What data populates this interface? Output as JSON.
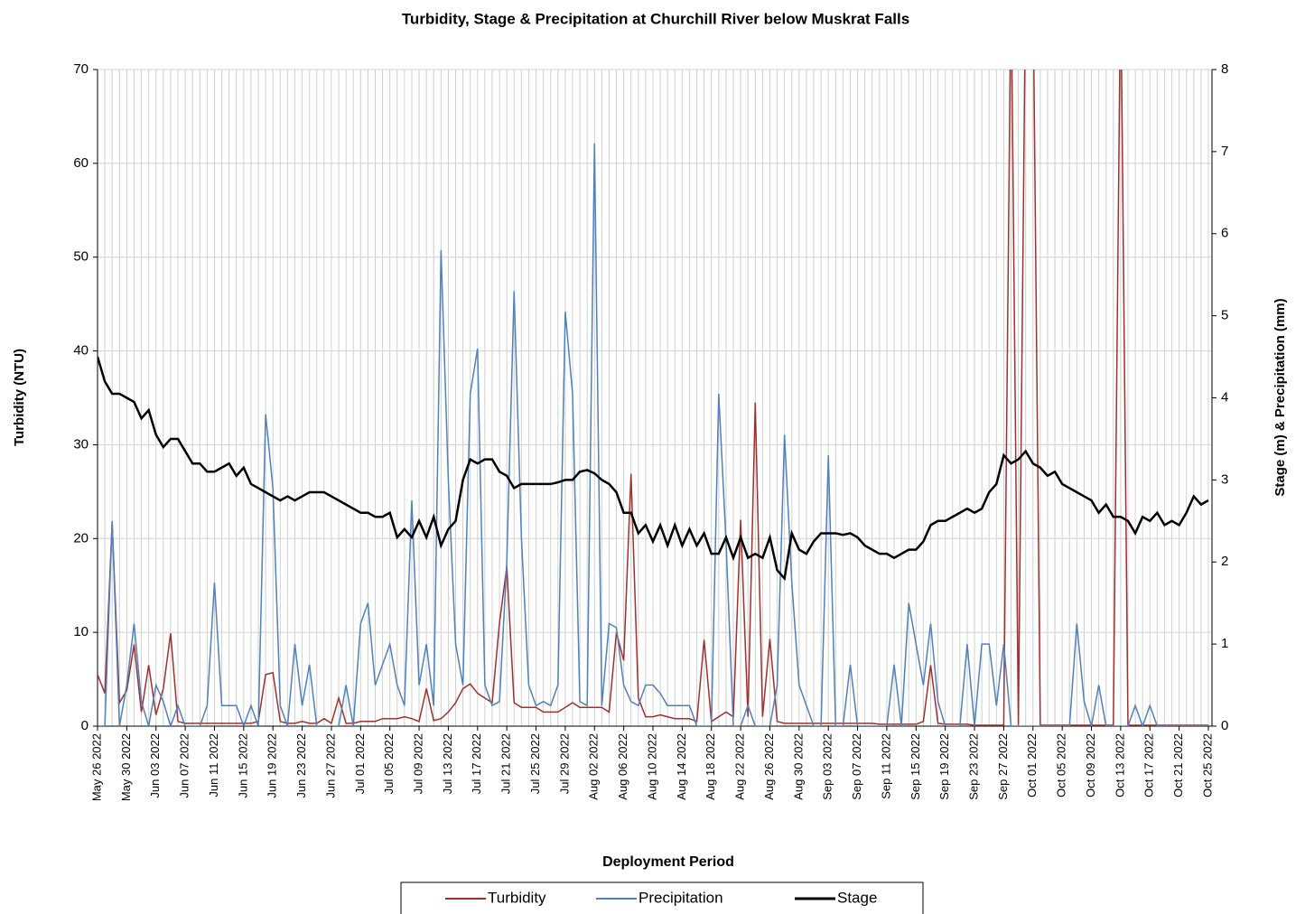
{
  "chart_data": {
    "type": "line",
    "title": "Turbidity, Stage & Precipitation at Churchill River below Muskrat Falls",
    "x_label": "Deployment Period",
    "y_label": "Turbidity (NTU)",
    "y2_label": "Stage (m) & Precipitation (mm)",
    "ylim": [
      0,
      70
    ],
    "yticks": [
      0,
      10,
      20,
      30,
      40,
      50,
      60,
      70
    ],
    "y2lim": [
      0,
      8
    ],
    "y2ticks": [
      0,
      1,
      2,
      3,
      4,
      5,
      6,
      7,
      8
    ],
    "grid": true,
    "legend": "bottom",
    "categories": [
      "May 26 2022",
      null,
      null,
      null,
      "May 30 2022",
      null,
      null,
      null,
      "Jun 03 2022",
      null,
      null,
      null,
      "Jun 07 2022",
      null,
      null,
      null,
      "Jun 11 2022",
      null,
      null,
      null,
      "Jun 15 2022",
      null,
      null,
      null,
      "Jun 19 2022",
      null,
      null,
      null,
      "Jun 23 2022",
      null,
      null,
      null,
      "Jun 27 2022",
      null,
      null,
      null,
      "Jul 01 2022",
      null,
      null,
      null,
      "Jul 05 2022",
      null,
      null,
      null,
      "Jul 09 2022",
      null,
      null,
      null,
      "Jul 13 2022",
      null,
      null,
      null,
      "Jul 17 2022",
      null,
      null,
      null,
      "Jul 21 2022",
      null,
      null,
      null,
      "Jul 25 2022",
      null,
      null,
      null,
      "Jul 29 2022",
      null,
      null,
      null,
      "Aug 02 2022",
      null,
      null,
      null,
      "Aug 06 2022",
      null,
      null,
      null,
      "Aug 10 2022",
      null,
      null,
      null,
      "Aug 14 2022",
      null,
      null,
      null,
      "Aug 18 2022",
      null,
      null,
      null,
      "Aug 22 2022",
      null,
      null,
      null,
      "Aug 26 2022",
      null,
      null,
      null,
      "Aug 30 2022",
      null,
      null,
      null,
      "Sep 03 2022",
      null,
      null,
      null,
      "Sep 07 2022",
      null,
      null,
      null,
      "Sep 11 2022",
      null,
      null,
      null,
      "Sep 15 2022",
      null,
      null,
      null,
      "Sep 19 2022",
      null,
      null,
      null,
      "Sep 23 2022",
      null,
      null,
      null,
      "Sep 27 2022",
      null,
      null,
      null,
      "Oct 01 2022",
      null,
      null,
      null,
      "Oct 05 2022",
      null,
      null,
      null,
      "Oct 09 2022",
      null,
      null,
      null,
      "Oct 13 2022",
      null,
      null,
      null,
      "Oct 17 2022",
      null,
      null,
      null,
      "Oct 21 2022",
      null,
      null,
      null,
      "Oct 25 2022"
    ],
    "series": [
      {
        "name": "Turbidity",
        "color": "#a0302f",
        "axis": "y",
        "values": [
          5.5,
          3.5,
          21.7,
          2.5,
          3.8,
          8.7,
          1.5,
          6.5,
          1.2,
          4,
          9.9,
          0.5,
          0.3,
          0.3,
          0.3,
          0.3,
          0.3,
          0.3,
          0.3,
          0.3,
          0.3,
          0.3,
          0.5,
          5.5,
          5.7,
          0.5,
          0.3,
          0.3,
          0.5,
          0.3,
          0.3,
          0.8,
          0.3,
          3,
          0.3,
          0.3,
          0.5,
          0.5,
          0.5,
          0.8,
          0.8,
          0.8,
          1,
          0.8,
          0.5,
          4,
          0.6,
          0.8,
          1.5,
          2.5,
          4,
          4.5,
          3.5,
          3,
          2.5,
          11,
          17,
          2.5,
          2,
          2,
          2,
          1.5,
          1.5,
          1.5,
          2,
          2.5,
          2,
          2,
          2,
          2,
          1.5,
          10,
          7,
          26.9,
          3,
          1,
          1,
          1.2,
          1,
          0.8,
          0.8,
          0.8,
          0.5,
          9.2,
          0.5,
          1,
          1.5,
          1,
          22,
          1,
          34.5,
          1,
          9.3,
          0.5,
          0.3,
          0.3,
          0.3,
          0.3,
          0.3,
          0.3,
          0.3,
          0.3,
          0.3,
          0.3,
          0.3,
          0.3,
          0.3,
          0.2,
          0.2,
          0.2,
          0.2,
          0.2,
          0.2,
          0.5,
          6.5,
          0.3,
          0.2,
          0.2,
          0.2,
          0.2,
          0.1,
          0.1,
          0.1,
          0.1,
          0.1,
          80,
          0.1,
          80,
          80,
          0.1,
          0.1,
          0.1,
          0.1,
          0.1,
          0.1,
          0.1,
          0.1,
          0.1,
          0.1,
          0.1,
          80,
          0.1,
          0.1,
          0.1,
          0.1,
          0.1,
          0.1,
          0.1,
          0.1,
          0.1,
          0.1,
          0.1,
          0.1
        ]
      },
      {
        "name": "Precipitation",
        "color": "#4f81bd",
        "axis": "y2",
        "values": [
          0,
          0,
          2.5,
          0,
          0.5,
          1.25,
          0.3,
          0,
          0.5,
          0.3,
          0,
          0.25,
          0,
          0,
          0,
          0.25,
          1.75,
          0.25,
          0.25,
          0.25,
          0,
          0.25,
          0,
          3.8,
          2.9,
          0.25,
          0,
          1.0,
          0.25,
          0.75,
          0,
          0,
          0,
          0,
          0.5,
          0,
          1.25,
          1.5,
          0.5,
          0.75,
          1.0,
          0.5,
          0.25,
          2.75,
          0.5,
          1.0,
          0.25,
          5.8,
          3.0,
          1.0,
          0.5,
          4.05,
          4.6,
          0.5,
          0.25,
          0.3,
          2.0,
          5.3,
          2.3,
          0.5,
          0.25,
          0.3,
          0.25,
          0.5,
          5.05,
          4.05,
          0.3,
          0.25,
          7.1,
          0.25,
          1.25,
          1.2,
          0.5,
          0.3,
          0.25,
          0.5,
          0.5,
          0.4,
          0.25,
          0.25,
          0.25,
          0.25,
          0,
          0,
          0,
          4.05,
          2.25,
          0,
          0,
          0.25,
          0,
          0,
          0,
          0.5,
          3.55,
          1.75,
          0.5,
          0.25,
          0,
          0,
          3.3,
          0,
          0,
          0.75,
          0,
          0,
          0,
          0,
          0,
          0.75,
          0,
          1.5,
          1.0,
          0.5,
          1.25,
          0.3,
          0,
          0,
          0,
          1.0,
          0,
          1.0,
          1.0,
          0.25,
          1.0,
          0,
          0,
          0,
          0,
          0,
          0,
          0,
          0,
          0,
          1.25,
          0.3,
          0,
          0.5,
          0,
          0,
          0,
          0,
          0.25,
          0,
          0.25,
          0,
          0,
          0,
          0,
          0,
          0,
          0,
          0
        ]
      },
      {
        "name": "Stage",
        "color": "#000000",
        "axis": "y2",
        "values": [
          4.5,
          4.2,
          4.05,
          4.05,
          4.0,
          3.95,
          3.75,
          3.85,
          3.55,
          3.4,
          3.5,
          3.5,
          3.35,
          3.2,
          3.2,
          3.1,
          3.1,
          3.15,
          3.2,
          3.05,
          3.15,
          2.95,
          2.9,
          2.85,
          2.8,
          2.75,
          2.8,
          2.75,
          2.8,
          2.85,
          2.85,
          2.85,
          2.8,
          2.75,
          2.7,
          2.65,
          2.6,
          2.6,
          2.55,
          2.55,
          2.6,
          2.3,
          2.4,
          2.3,
          2.5,
          2.3,
          2.55,
          2.2,
          2.4,
          2.5,
          3.0,
          3.25,
          3.2,
          3.25,
          3.25,
          3.1,
          3.05,
          2.9,
          2.95,
          2.95,
          2.95,
          2.95,
          2.95,
          2.97,
          3.0,
          3.0,
          3.1,
          3.12,
          3.08,
          3.0,
          2.95,
          2.85,
          2.6,
          2.6,
          2.35,
          2.45,
          2.25,
          2.45,
          2.2,
          2.45,
          2.2,
          2.4,
          2.2,
          2.35,
          2.1,
          2.1,
          2.3,
          2.05,
          2.3,
          2.05,
          2.1,
          2.05,
          2.3,
          1.9,
          1.8,
          2.35,
          2.15,
          2.1,
          2.25,
          2.35,
          2.35,
          2.35,
          2.33,
          2.35,
          2.3,
          2.2,
          2.15,
          2.1,
          2.1,
          2.05,
          2.1,
          2.15,
          2.15,
          2.25,
          2.45,
          2.5,
          2.5,
          2.55,
          2.6,
          2.65,
          2.6,
          2.65,
          2.85,
          2.95,
          3.3,
          3.2,
          3.25,
          3.35,
          3.2,
          3.15,
          3.05,
          3.1,
          2.95,
          2.9,
          2.85,
          2.8,
          2.75,
          2.6,
          2.7,
          2.55,
          2.55,
          2.5,
          2.35,
          2.55,
          2.5,
          2.6,
          2.45,
          2.5,
          2.45,
          2.6,
          2.8,
          2.7,
          2.75
        ]
      }
    ]
  }
}
